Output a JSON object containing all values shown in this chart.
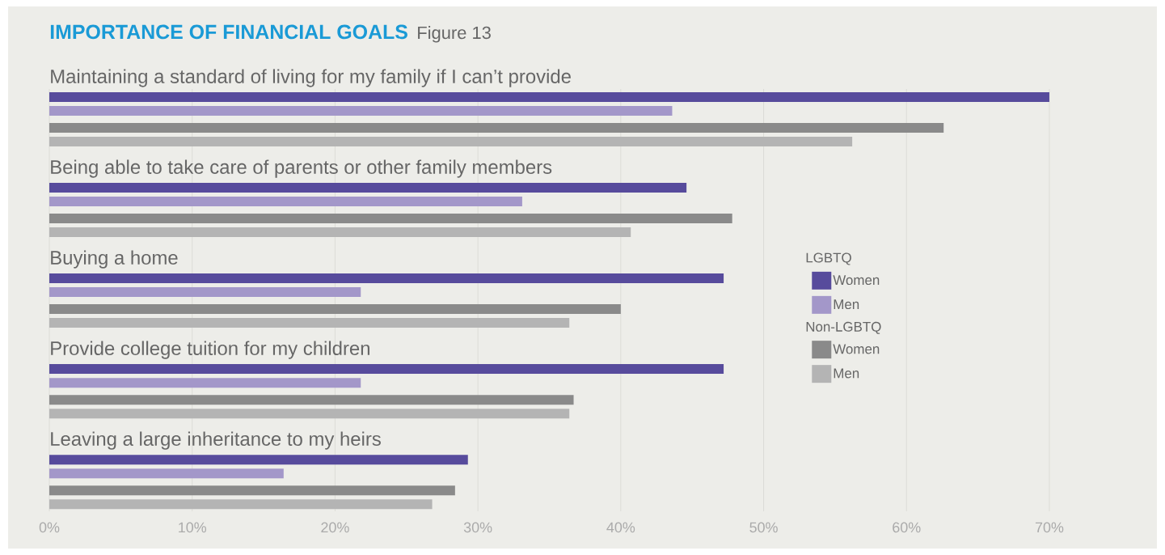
{
  "chart_data": {
    "type": "bar",
    "orientation": "horizontal",
    "title": "IMPORTANCE OF FINANCIAL GOALS",
    "subtitle": "Figure 13",
    "categories": [
      "Maintaining a standard of living for my family if I can’t provide",
      "Being able to take care of parents or other family members",
      "Buying a home",
      "Provide college tuition for my children",
      "Leaving a large inheritance to my heirs"
    ],
    "series": [
      {
        "name": "Women",
        "color": "#574b9c",
        "values": [
          70.0,
          44.6,
          47.2,
          47.2,
          29.3
        ]
      },
      {
        "name": "Men",
        "color": "#a397c9",
        "values": [
          43.6,
          33.1,
          21.8,
          21.8,
          16.4
        ]
      },
      {
        "name": "Women",
        "color": "#8a8a8a",
        "values": [
          62.6,
          47.8,
          40.0,
          36.7,
          28.4
        ]
      },
      {
        "name": "Men",
        "color": "#b4b4b4",
        "values": [
          56.2,
          40.7,
          36.4,
          36.4,
          26.8
        ]
      }
    ],
    "annotations": [
      "LGBTQ",
      "Non-LGBTQ"
    ],
    "xlim": [
      0,
      70
    ],
    "xticks": [
      {
        "value": 0,
        "label": "0%"
      },
      {
        "value": 10,
        "label": "10%"
      },
      {
        "value": 20,
        "label": "20%"
      },
      {
        "value": 30,
        "label": "30%"
      },
      {
        "value": 40,
        "label": "40%"
      },
      {
        "value": 50,
        "label": "50%"
      },
      {
        "value": 60,
        "label": "60%"
      },
      {
        "value": 70,
        "label": "70%"
      }
    ],
    "grid": "x",
    "legend": "right"
  }
}
